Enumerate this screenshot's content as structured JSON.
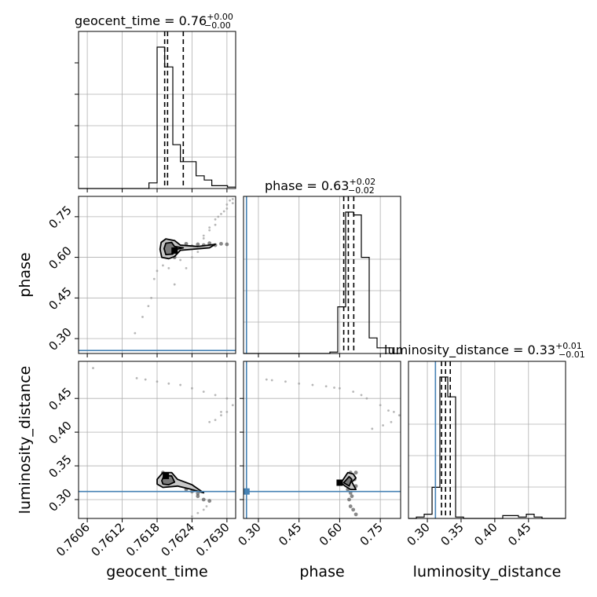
{
  "chart_data": {
    "type": "corner",
    "parameters": [
      "geocent_time",
      "phase",
      "luminosity_distance"
    ],
    "titles": [
      {
        "param": "geocent_time",
        "text": "geocent_time = 0.76",
        "sup": "+0.00",
        "sub": "−0.00"
      },
      {
        "param": "phase",
        "text": "phase = 0.63",
        "sup": "+0.02",
        "sub": "−0.02"
      },
      {
        "param": "luminosity_distance",
        "text": "luminosity_distance = 0.33",
        "sup": "+0.01",
        "sub": "−0.01"
      }
    ],
    "axis_labels": [
      "geocent_time",
      "phase",
      "luminosity_distance"
    ],
    "ticks": {
      "geocent_time": {
        "values": [
          0.7606,
          0.7612,
          0.7618,
          0.7624,
          0.763
        ],
        "labels": [
          "0.7606",
          "0.7612",
          "0.7618",
          "0.7624",
          "0.7630"
        ]
      },
      "phase": {
        "values": [
          0.3,
          0.45,
          0.6,
          0.75
        ],
        "labels": [
          "0.30",
          "0.45",
          "0.60",
          "0.75"
        ]
      },
      "luminosity_distance": {
        "values": [
          0.3,
          0.35,
          0.4,
          0.45
        ],
        "labels": [
          "0.30",
          "0.35",
          "0.40",
          "0.45"
        ]
      }
    },
    "ranges": {
      "geocent_time": [
        0.76045,
        0.76315
      ],
      "phase": [
        0.245,
        0.825
      ],
      "luminosity_distance": [
        0.272,
        0.505
      ]
    },
    "histograms": {
      "geocent_time": {
        "edges": [
          0.76045,
          0.76058,
          0.76072,
          0.76085,
          0.76099,
          0.76112,
          0.76126,
          0.76139,
          0.76153,
          0.76166,
          0.7618,
          0.76193,
          0.76207,
          0.7622,
          0.76234,
          0.76247,
          0.76261,
          0.76274,
          0.76288,
          0.76301,
          0.76315
        ],
        "counts": [
          0,
          0,
          0,
          0,
          0,
          0,
          0,
          0,
          0,
          0.04,
          1.0,
          0.86,
          0.31,
          0.19,
          0.19,
          0.09,
          0.06,
          0.02,
          0.02,
          0.01
        ]
      },
      "phase": {
        "edges": [
          0.245,
          0.274,
          0.303,
          0.332,
          0.361,
          0.39,
          0.419,
          0.448,
          0.477,
          0.506,
          0.535,
          0.564,
          0.593,
          0.622,
          0.651,
          0.68,
          0.709,
          0.738,
          0.767,
          0.796,
          0.825
        ],
        "counts": [
          0,
          0,
          0,
          0,
          0,
          0,
          0,
          0,
          0,
          0,
          0,
          0.01,
          0.33,
          1.0,
          0.98,
          0.68,
          0.11,
          0.04,
          0.04,
          0.0
        ]
      },
      "luminosity_distance": {
        "edges": [
          0.272,
          0.2837,
          0.2953,
          0.307,
          0.3186,
          0.3303,
          0.3419,
          0.3536,
          0.3652,
          0.3769,
          0.3885,
          0.4002,
          0.4118,
          0.4235,
          0.4351,
          0.4468,
          0.4584,
          0.4701,
          0.4817,
          0.4934,
          0.505
        ],
        "counts": [
          0,
          0.01,
          0.03,
          0.22,
          1.0,
          0.86,
          0.01,
          0,
          0,
          0,
          0,
          0,
          0.02,
          0.02,
          0.01,
          0.03,
          0.01,
          0,
          0,
          0
        ]
      }
    },
    "quantile_lines": {
      "geocent_time": [
        0.76193,
        0.76198,
        0.76225
      ],
      "phase": [
        0.615,
        0.632,
        0.652
      ],
      "luminosity_distance": [
        0.321,
        0.327,
        0.334
      ]
    },
    "truths": {
      "geocent_time": null,
      "phase": 0.256,
      "luminosity_distance": 0.312
    },
    "scatter_panels": [
      {
        "x": "geocent_time",
        "y": "phase",
        "modes": [
          {
            "x": 0.7621,
            "y": 0.625
          }
        ],
        "contours": [
          [
            [
              0.76185,
              0.63
            ],
            [
              0.76187,
              0.655
            ],
            [
              0.76195,
              0.668
            ],
            [
              0.7621,
              0.662
            ],
            [
              0.7622,
              0.645
            ],
            [
              0.7625,
              0.64
            ],
            [
              0.7628,
              0.648
            ],
            [
              0.7627,
              0.635
            ],
            [
              0.7622,
              0.626
            ],
            [
              0.7621,
              0.603
            ],
            [
              0.762,
              0.595
            ],
            [
              0.76188,
              0.6
            ]
          ],
          [
            [
              0.76192,
              0.632
            ],
            [
              0.76195,
              0.652
            ],
            [
              0.76205,
              0.655
            ],
            [
              0.7621,
              0.64
            ],
            [
              0.76225,
              0.635
            ],
            [
              0.7621,
              0.628
            ],
            [
              0.76207,
              0.612
            ],
            [
              0.76195,
              0.61
            ]
          ]
        ],
        "density_points": [
          [
            [
              0.7619,
              0.655
            ],
            [
              0.7621,
              0.655
            ],
            [
              0.7623,
              0.65
            ],
            [
              0.7625,
              0.648
            ],
            [
              0.7627,
              0.652
            ],
            [
              0.7629,
              0.65
            ],
            [
              0.7626,
              0.645
            ],
            [
              0.7624,
              0.64
            ],
            [
              0.7619,
              0.64
            ],
            [
              0.762,
              0.63
            ],
            [
              0.7622,
              0.632
            ],
            [
              0.7619,
              0.62
            ],
            [
              0.762,
              0.61
            ],
            [
              0.7621,
              0.6
            ],
            [
              0.7628,
              0.645
            ],
            [
              0.763,
              0.648
            ]
          ],
          [
            [
              0.76175,
              0.52
            ],
            [
              0.7618,
              0.55
            ],
            [
              0.7619,
              0.57
            ],
            [
              0.762,
              0.56
            ],
            [
              0.7622,
              0.59
            ],
            [
              0.7623,
              0.56
            ],
            [
              0.7624,
              0.6
            ],
            [
              0.7625,
              0.62
            ],
            [
              0.7626,
              0.68
            ],
            [
              0.7627,
              0.7
            ],
            [
              0.7628,
              0.72
            ],
            [
              0.76285,
              0.75
            ],
            [
              0.7629,
              0.76
            ],
            [
              0.763,
              0.78
            ],
            [
              0.7631,
              0.8
            ],
            [
              0.76305,
              0.81
            ],
            [
              0.763,
              0.795
            ],
            [
              0.76295,
              0.77
            ],
            [
              0.7627,
              0.71
            ],
            [
              0.7626,
              0.67
            ],
            [
              0.7624,
              0.63
            ],
            [
              0.76165,
              0.42
            ],
            [
              0.76155,
              0.38
            ],
            [
              0.76142,
              0.32
            ],
            [
              0.7617,
              0.45
            ],
            [
              0.7621,
              0.5
            ],
            [
              0.7628,
              0.74
            ],
            [
              0.7631,
              0.815
            ]
          ]
        ]
      },
      {
        "x": "geocent_time",
        "y": "luminosity_distance",
        "modes": [
          {
            "x": 0.76195,
            "y": 0.335
          }
        ],
        "contours": [
          [
            [
              0.7618,
              0.33
            ],
            [
              0.7619,
              0.34
            ],
            [
              0.76205,
              0.34
            ],
            [
              0.76215,
              0.33
            ],
            [
              0.7624,
              0.322
            ],
            [
              0.7626,
              0.31
            ],
            [
              0.76235,
              0.316
            ],
            [
              0.76215,
              0.32
            ],
            [
              0.7619,
              0.318
            ],
            [
              0.7618,
              0.323
            ]
          ],
          [
            [
              0.76188,
              0.328
            ],
            [
              0.76192,
              0.336
            ],
            [
              0.76205,
              0.335
            ],
            [
              0.7621,
              0.326
            ],
            [
              0.762,
              0.322
            ],
            [
              0.7619,
              0.323
            ]
          ]
        ],
        "density_points": [
          [
            [
              0.7619,
              0.34
            ],
            [
              0.762,
              0.338
            ],
            [
              0.7621,
              0.33
            ],
            [
              0.7622,
              0.322
            ],
            [
              0.7623,
              0.318
            ],
            [
              0.7624,
              0.312
            ],
            [
              0.7625,
              0.305
            ],
            [
              0.7626,
              0.3
            ],
            [
              0.7627,
              0.298
            ],
            [
              0.7625,
              0.309
            ],
            [
              0.7623,
              0.315
            ]
          ],
          [
            [
              0.76145,
              0.48
            ],
            [
              0.7616,
              0.478
            ],
            [
              0.7618,
              0.475
            ],
            [
              0.762,
              0.472
            ],
            [
              0.7622,
              0.47
            ],
            [
              0.7624,
              0.465
            ],
            [
              0.7626,
              0.46
            ],
            [
              0.7628,
              0.455
            ],
            [
              0.763,
              0.45
            ],
            [
              0.7631,
              0.44
            ],
            [
              0.763,
              0.43
            ],
            [
              0.7629,
              0.425
            ],
            [
              0.7628,
              0.418
            ],
            [
              0.7627,
              0.415
            ],
            [
              0.7626,
              0.285
            ],
            [
              0.7625,
              0.28
            ],
            [
              0.7624,
              0.275
            ],
            [
              0.76265,
              0.29
            ],
            [
              0.7629,
              0.43
            ],
            [
              0.7607,
              0.495
            ]
          ]
        ]
      },
      {
        "x": "phase",
        "y": "luminosity_distance",
        "modes": [
          {
            "x": 0.6,
            "y": 0.325
          },
          {
            "x": 0.256,
            "y": 0.312
          }
        ],
        "contours": [
          [
            [
              0.605,
              0.325
            ],
            [
              0.63,
              0.34
            ],
            [
              0.65,
              0.338
            ],
            [
              0.66,
              0.332
            ],
            [
              0.645,
              0.326
            ],
            [
              0.66,
              0.315
            ],
            [
              0.64,
              0.315
            ],
            [
              0.62,
              0.32
            ]
          ],
          [
            [
              0.615,
              0.325
            ],
            [
              0.635,
              0.334
            ],
            [
              0.645,
              0.33
            ],
            [
              0.635,
              0.32
            ]
          ]
        ],
        "density_points": [
          [
            [
              0.64,
              0.34
            ],
            [
              0.65,
              0.335
            ],
            [
              0.66,
              0.34
            ],
            [
              0.655,
              0.33
            ],
            [
              0.66,
              0.32
            ],
            [
              0.64,
              0.31
            ],
            [
              0.635,
              0.3
            ],
            [
              0.64,
              0.29
            ],
            [
              0.65,
              0.285
            ],
            [
              0.66,
              0.278
            ],
            [
              0.63,
              0.315
            ],
            [
              0.645,
              0.305
            ]
          ],
          [
            [
              0.33,
              0.478
            ],
            [
              0.4,
              0.475
            ],
            [
              0.45,
              0.472
            ],
            [
              0.5,
              0.47
            ],
            [
              0.55,
              0.468
            ],
            [
              0.6,
              0.465
            ],
            [
              0.65,
              0.46
            ],
            [
              0.7,
              0.45
            ],
            [
              0.75,
              0.44
            ],
            [
              0.78,
              0.432
            ],
            [
              0.8,
              0.43
            ],
            [
              0.82,
              0.425
            ],
            [
              0.79,
              0.415
            ],
            [
              0.76,
              0.41
            ],
            [
              0.72,
              0.405
            ],
            [
              0.35,
              0.477
            ],
            [
              0.58,
              0.466
            ],
            [
              0.68,
              0.455
            ]
          ]
        ]
      }
    ],
    "colors": {
      "truth": "#4682b4",
      "line": "#000000",
      "grid": "#b0b0b0",
      "fill_dark": "#7a7a7a",
      "fill_light": "#c8c8c8"
    }
  }
}
